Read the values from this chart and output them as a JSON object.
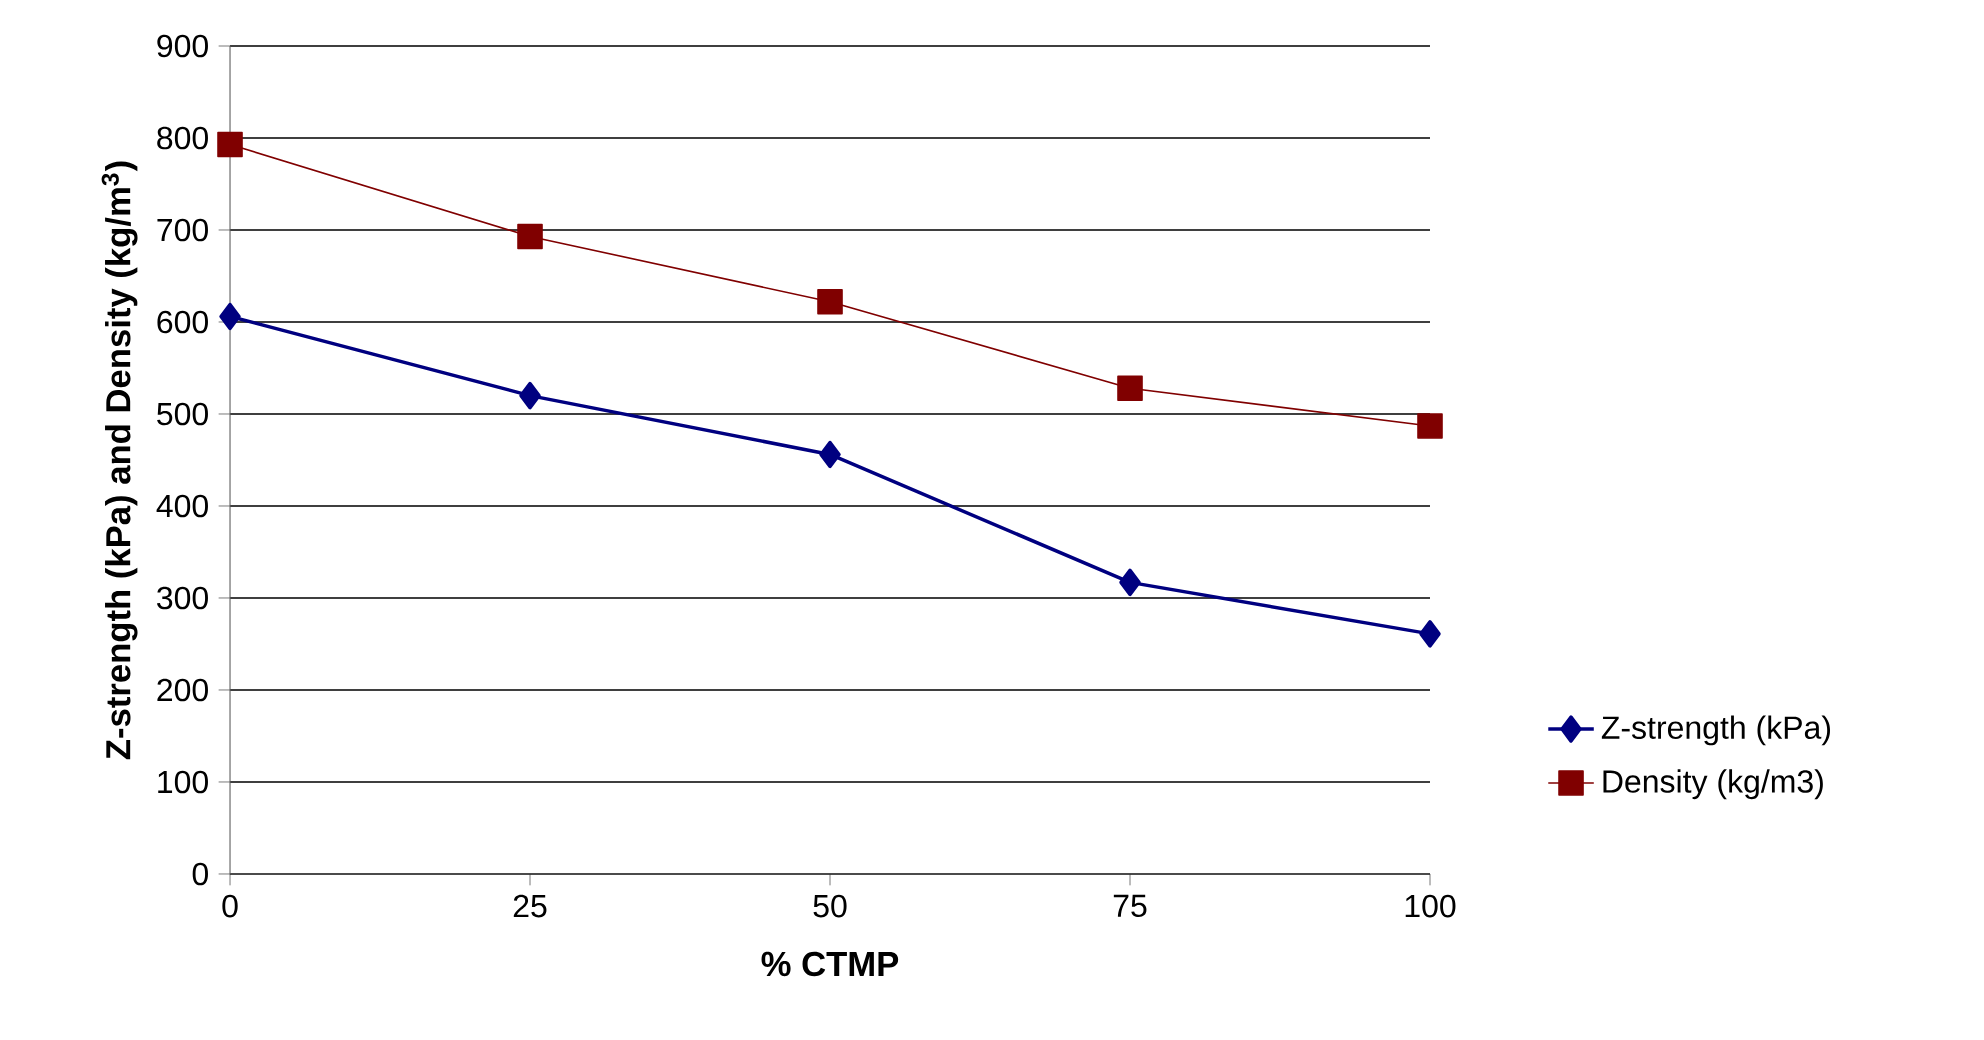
{
  "chart_data": {
    "type": "line",
    "xlabel": "% CTMP",
    "ylabel": "Z-strength (kPa)  and  Density (kg/m$^{3}$)",
    "x": [
      0,
      25,
      50,
      75,
      100
    ],
    "series": [
      {
        "name": "Z-strength (kPa)",
        "color": "#000080",
        "marker": "diamond",
        "values": [
          606,
          520,
          456,
          317,
          261
        ]
      },
      {
        "name": "Density (kg/m3)",
        "color": "#800000",
        "marker": "square",
        "values": [
          793,
          693,
          622,
          528,
          487
        ]
      }
    ],
    "xlim": [
      0,
      100
    ],
    "xticks": [
      0,
      25,
      50,
      75,
      100
    ],
    "ylim": [
      0,
      900
    ],
    "yticks": [
      0,
      100,
      200,
      300,
      400,
      500,
      600,
      700,
      800,
      900
    ],
    "grid": "y",
    "legend": "right",
    "line_style": "solid"
  }
}
